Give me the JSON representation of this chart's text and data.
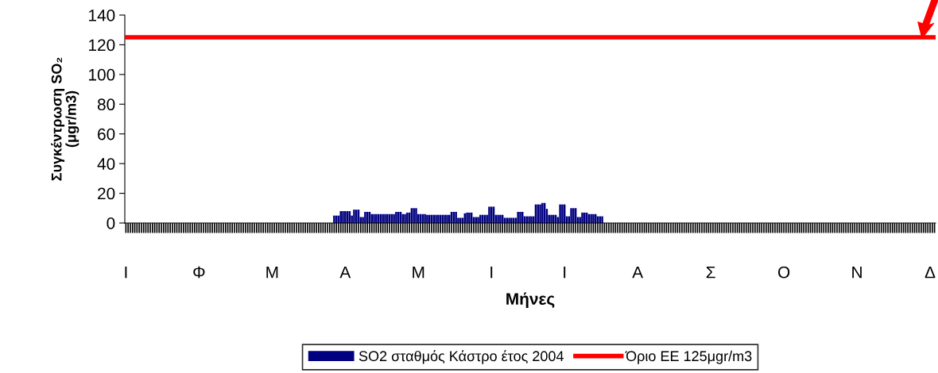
{
  "chart_data": {
    "type": "bar",
    "xlabel": "Μήνες",
    "ylabel": "Συγκέντρωση SO₂\n(μgr/m3)",
    "categories": [
      "Ι",
      null,
      null,
      null,
      null,
      null,
      null,
      null,
      null,
      null,
      null,
      null,
      null,
      null,
      null,
      null,
      null,
      null,
      null,
      null,
      null,
      null,
      null,
      null,
      null,
      null,
      null,
      null,
      null,
      null,
      null,
      null,
      null,
      "Φ",
      null,
      null,
      null,
      null,
      null,
      null,
      null,
      null,
      null,
      null,
      null,
      null,
      null,
      null,
      null,
      null,
      null,
      null,
      null,
      null,
      null,
      null,
      null,
      null,
      null,
      null,
      null,
      null,
      null,
      null,
      null,
      null,
      "Μ",
      null,
      null,
      null,
      null,
      null,
      null,
      null,
      null,
      null,
      null,
      null,
      null,
      null,
      null,
      null,
      null,
      null,
      null,
      null,
      null,
      null,
      null,
      null,
      null,
      null,
      null,
      null,
      null,
      null,
      null,
      null,
      null,
      "Α",
      null,
      null,
      null,
      null,
      null,
      null,
      null,
      null,
      null,
      null,
      null,
      null,
      null,
      null,
      null,
      null,
      null,
      null,
      null,
      null,
      null,
      null,
      null,
      null,
      null,
      null,
      null,
      null,
      null,
      null,
      null,
      null,
      "Μ",
      null,
      null,
      null,
      null,
      null,
      null,
      null,
      null,
      null,
      null,
      null,
      null,
      null,
      null,
      null,
      null,
      null,
      null,
      null,
      null,
      null,
      null,
      null,
      null,
      null,
      null,
      null,
      null,
      null,
      null,
      null,
      null,
      "Ι",
      null,
      null,
      null,
      null,
      null,
      null,
      null,
      null,
      null,
      null,
      null,
      null,
      null,
      null,
      null,
      null,
      null,
      null,
      null,
      null,
      null,
      null,
      null,
      null,
      null,
      null,
      null,
      null,
      null,
      null,
      null,
      null,
      "Ι",
      null,
      null,
      null,
      null,
      null,
      null,
      null,
      null,
      null,
      null,
      null,
      null,
      null,
      null,
      null,
      null,
      null,
      null,
      null,
      null,
      null,
      null,
      null,
      null,
      null,
      null,
      null,
      null,
      null,
      null,
      null,
      null,
      "Α",
      null,
      null,
      null,
      null,
      null,
      null,
      null,
      null,
      null,
      null,
      null,
      null,
      null,
      null,
      null,
      null,
      null,
      null,
      null,
      null,
      null,
      null,
      null,
      null,
      null,
      null,
      null,
      null,
      null,
      null,
      null,
      null,
      "Σ",
      null,
      null,
      null,
      null,
      null,
      null,
      null,
      null,
      null,
      null,
      null,
      null,
      null,
      null,
      null,
      null,
      null,
      null,
      null,
      null,
      null,
      null,
      null,
      null,
      null,
      null,
      null,
      null,
      null,
      null,
      null,
      null,
      "Ο",
      null,
      null,
      null,
      null,
      null,
      null,
      null,
      null,
      null,
      null,
      null,
      null,
      null,
      null,
      null,
      null,
      null,
      null,
      null,
      null,
      null,
      null,
      null,
      null,
      null,
      null,
      null,
      null,
      null,
      null,
      null,
      null,
      "Ν",
      null,
      null,
      null,
      null,
      null,
      null,
      null,
      null,
      null,
      null,
      null,
      null,
      null,
      null,
      null,
      null,
      null,
      null,
      null,
      null,
      null,
      null,
      null,
      null,
      null,
      null,
      null,
      null,
      null,
      null,
      null,
      null,
      "Δ",
      null,
      null
    ],
    "series": [
      {
        "name": "SO2 σταθμός Κάστρο έτος 2004",
        "color": "#000080",
        "values": [
          null,
          null,
          null,
          null,
          null,
          null,
          null,
          null,
          null,
          null,
          null,
          null,
          null,
          null,
          null,
          null,
          null,
          null,
          null,
          null,
          null,
          null,
          null,
          null,
          null,
          null,
          null,
          null,
          null,
          null,
          null,
          null,
          null,
          null,
          null,
          null,
          null,
          null,
          null,
          null,
          null,
          null,
          null,
          null,
          null,
          null,
          null,
          null,
          null,
          null,
          null,
          null,
          null,
          null,
          null,
          null,
          null,
          null,
          null,
          null,
          null,
          null,
          null,
          null,
          null,
          null,
          null,
          null,
          null,
          null,
          null,
          null,
          null,
          null,
          null,
          null,
          null,
          null,
          null,
          null,
          null,
          null,
          null,
          null,
          null,
          null,
          null,
          null,
          null,
          null,
          null,
          null,
          null,
          null,
          5,
          5,
          5,
          8,
          8,
          8,
          8,
          8,
          5,
          9,
          9,
          9,
          4,
          4,
          7.5,
          7.5,
          7.5,
          6,
          6,
          6,
          6,
          6,
          6,
          6,
          6,
          6,
          6,
          6,
          7.5,
          7.5,
          7.5,
          6,
          6,
          7,
          7,
          10,
          10,
          10,
          6,
          6,
          6,
          6,
          5.5,
          5.5,
          5.5,
          5.5,
          5.5,
          5.5,
          5.5,
          5.5,
          5.5,
          5.5,
          5.5,
          7.5,
          7.5,
          7.5,
          3.5,
          3.5,
          3.5,
          6.5,
          7,
          7,
          7,
          4,
          4,
          4,
          5.5,
          5.5,
          5.5,
          5.5,
          11,
          11,
          11,
          5.5,
          5.5,
          5.5,
          5.5,
          3.5,
          3.5,
          3.5,
          3.5,
          3.5,
          3.5,
          7.5,
          7.5,
          7.5,
          4.5,
          4.5,
          4.5,
          4.5,
          4.5,
          12.5,
          12.5,
          12.5,
          13.5,
          13.5,
          9.5,
          5.5,
          5.5,
          5.5,
          5.5,
          4,
          12.5,
          12.5,
          12.5,
          4.5,
          4.5,
          10,
          10,
          10,
          4,
          4,
          7,
          7,
          7,
          6,
          6,
          6,
          6,
          4.5,
          4.5,
          4.5,
          null,
          null,
          null,
          null,
          null,
          null,
          null,
          null,
          null,
          null,
          null,
          null,
          null,
          null,
          null,
          null,
          null,
          null,
          null,
          null,
          null,
          null,
          null,
          null,
          null,
          null,
          null,
          null,
          null,
          null,
          null,
          null,
          null,
          null,
          null,
          null,
          null,
          null,
          null,
          null,
          null,
          null,
          null,
          null,
          null,
          null,
          null,
          null,
          null,
          null,
          null,
          null,
          null,
          null,
          null,
          null,
          null,
          null,
          null,
          null,
          null,
          null,
          null,
          null,
          null,
          null,
          null,
          null,
          null,
          null,
          null,
          null,
          null,
          null,
          null,
          null,
          null,
          null,
          null,
          null,
          null,
          null,
          null,
          null,
          null,
          null,
          null,
          null,
          null,
          null,
          null,
          null,
          null,
          null,
          null,
          null,
          null,
          null,
          null,
          null,
          null,
          null,
          null,
          null,
          null,
          null,
          null,
          null,
          null,
          null,
          null,
          null,
          null,
          null,
          null,
          null,
          null,
          null,
          null,
          null,
          null,
          null,
          null,
          null,
          null,
          null,
          null,
          null,
          null,
          null,
          null,
          null,
          null,
          null,
          null,
          null,
          null,
          null,
          null,
          null,
          null,
          null,
          null,
          null,
          null,
          null,
          null,
          null,
          null,
          null
        ]
      }
    ],
    "ref_lines": [
      {
        "axis": "y",
        "value": 125,
        "label": "Όριο ΕΕ 125μgr/m3",
        "color": "#ff0000"
      }
    ],
    "ylim": [
      0,
      140
    ],
    "yticks": [
      0,
      20,
      40,
      60,
      80,
      100,
      120,
      140
    ],
    "grid": false,
    "legend": "bottom"
  }
}
